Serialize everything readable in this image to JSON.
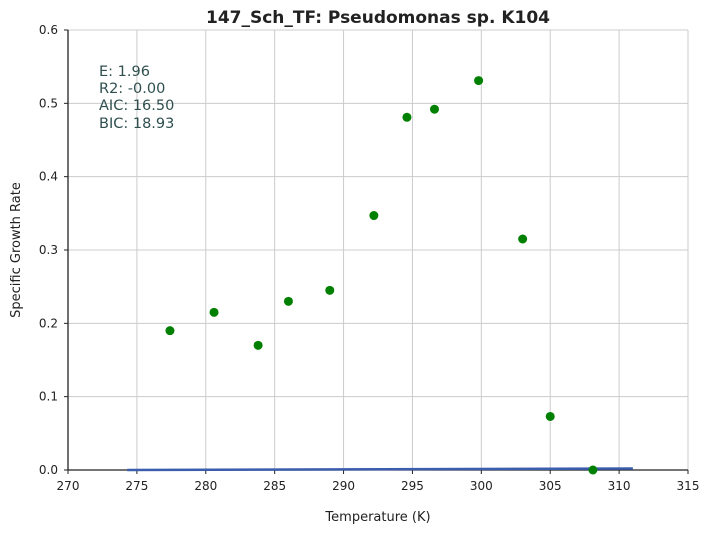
{
  "chart_data": {
    "type": "scatter",
    "title": "147_Sch_TF: Pseudomonas sp. K104",
    "xlabel": "Temperature (K)",
    "ylabel": "Specific Growth Rate",
    "xlim": [
      270,
      315
    ],
    "ylim": [
      0,
      0.6
    ],
    "xticks": [
      "270",
      "275",
      "280",
      "285",
      "290",
      "295",
      "300",
      "305",
      "310",
      "315"
    ],
    "yticks": [
      "0.0",
      "0.1",
      "0.2",
      "0.3",
      "0.4",
      "0.5",
      "0.6"
    ],
    "grid": true,
    "points": [
      {
        "x": 277.4,
        "y": 0.19
      },
      {
        "x": 280.6,
        "y": 0.215
      },
      {
        "x": 283.8,
        "y": 0.17
      },
      {
        "x": 286.0,
        "y": 0.23
      },
      {
        "x": 289.0,
        "y": 0.245
      },
      {
        "x": 292.2,
        "y": 0.347
      },
      {
        "x": 294.6,
        "y": 0.481
      },
      {
        "x": 296.6,
        "y": 0.492
      },
      {
        "x": 299.8,
        "y": 0.531
      },
      {
        "x": 303.0,
        "y": 0.315
      },
      {
        "x": 305.0,
        "y": 0.073
      },
      {
        "x": 308.1,
        "y": 0.0
      }
    ],
    "fit_line": {
      "x": [
        274.3,
        311.0
      ],
      "y": [
        0.0,
        0.002
      ]
    },
    "annotation": [
      "E:  1.96",
      "R2:  -0.00",
      "AIC: 16.50",
      "BIC: 18.93"
    ],
    "colors": {
      "points": "#008000",
      "fit_line": "#3a5dae",
      "grid": "#cccccc",
      "axes": "#222222",
      "annotation": "#2f4f4f"
    }
  }
}
